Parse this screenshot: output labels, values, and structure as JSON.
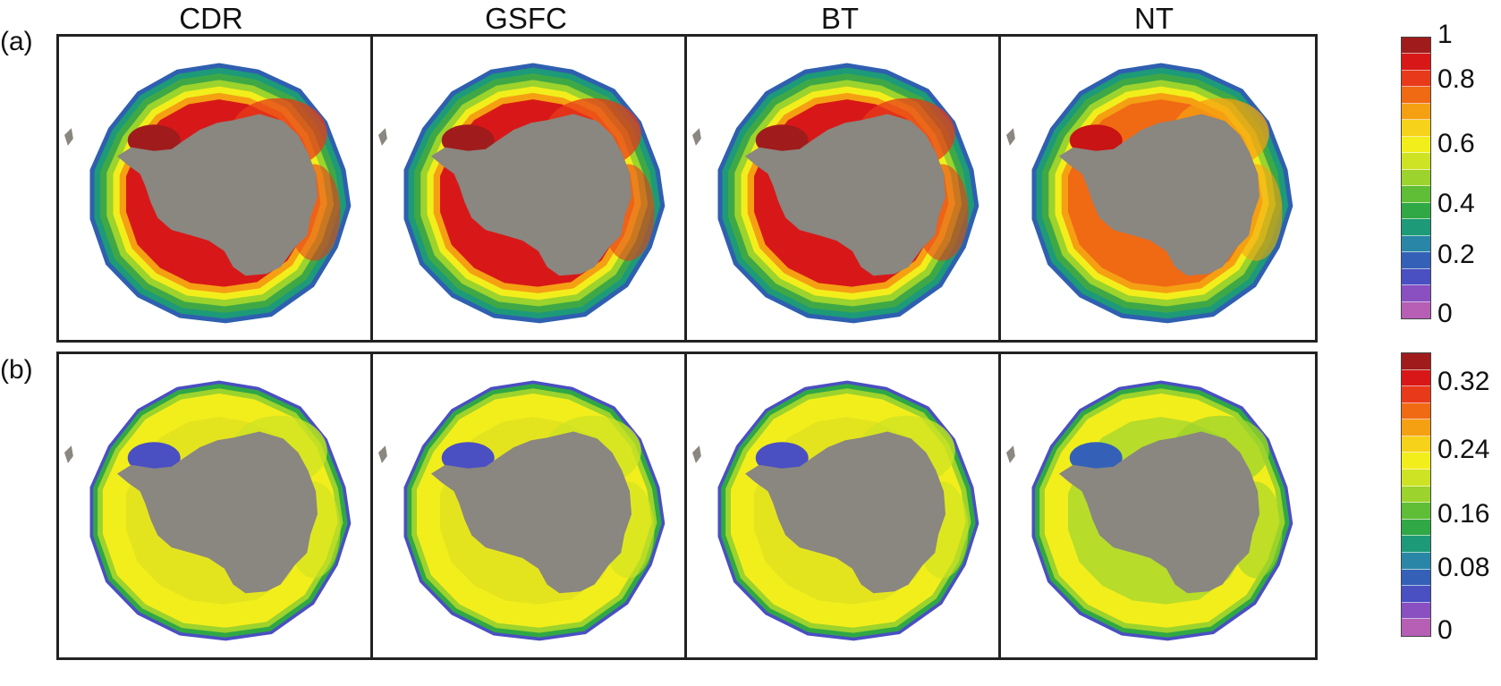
{
  "column_titles": [
    "CDR",
    "GSFC",
    "BT",
    "NT"
  ],
  "rows": [
    {
      "label": "(a)",
      "scale": {
        "ticks": [
          "1",
          "0.8",
          "0.6",
          "0.4",
          "0.2",
          "0"
        ],
        "colors": [
          "#a01c1c",
          "#d81818",
          "#e83a1a",
          "#f06a14",
          "#f5a012",
          "#f7d21a",
          "#f2ee1c",
          "#cde323",
          "#9cd32c",
          "#5fbd36",
          "#2fa845",
          "#1d9a78",
          "#2a86a6",
          "#3461b7",
          "#4a4fc2",
          "#8a4fc0",
          "#b65fb4"
        ],
        "rings": [
          {
            "r": 1.0,
            "color": "#2f5fb0"
          },
          {
            "r": 0.965,
            "color": "#1d9a78"
          },
          {
            "r": 0.92,
            "color": "#3fa846"
          },
          {
            "r": 0.87,
            "color": "#9cd32c"
          },
          {
            "r": 0.82,
            "color": "#f2ee1c"
          },
          {
            "r": 0.77,
            "color": "#f5a012"
          }
        ],
        "fills": [
          "#d81818",
          "#d81818",
          "#d81818",
          "#f06a14"
        ],
        "inner": [
          "#e83a1a",
          "#e83a1a",
          "#e83a1a",
          "#f5a012"
        ],
        "hot": [
          "#a01c1c",
          "#a01c1c",
          "#a01c1c",
          "#c81414"
        ]
      }
    },
    {
      "label": "(b)",
      "scale": {
        "ticks": [
          "0.32",
          "0.24",
          "0.16",
          "0.08",
          "0"
        ],
        "colors": [
          "#a01c1c",
          "#d81818",
          "#e83a1a",
          "#f06a14",
          "#f5a012",
          "#f7d21a",
          "#f2ee1c",
          "#cde323",
          "#9cd32c",
          "#5fbd36",
          "#2fa845",
          "#1d9a78",
          "#2a86a6",
          "#3461b7",
          "#4a4fc2",
          "#8a4fc0",
          "#b65fb4"
        ],
        "rings": [
          {
            "r": 1.0,
            "color": "#4a4fc2"
          },
          {
            "r": 0.975,
            "color": "#2fa845"
          },
          {
            "r": 0.94,
            "color": "#9cd32c"
          },
          {
            "r": 0.9,
            "color": "#f2ee1c"
          }
        ],
        "fills": [
          "#e4e41e",
          "#e4e41e",
          "#e4e41e",
          "#b7dc2a"
        ],
        "inner": [
          "#cde323",
          "#cde323",
          "#cde323",
          "#9cd32c"
        ],
        "hot": [
          "#4a4fc2",
          "#4a4fc2",
          "#4a4fc2",
          "#3461b7"
        ]
      }
    }
  ],
  "colors": {
    "land": "#8a8680",
    "frame": "#222222"
  }
}
